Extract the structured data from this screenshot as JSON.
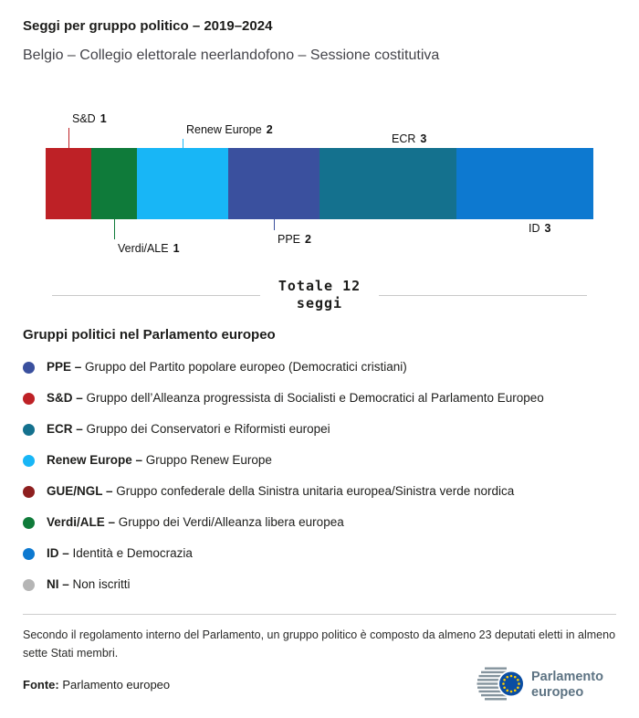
{
  "header": {
    "title": "Seggi per gruppo politico – 2019–2024",
    "subtitle": "Belgio – Collegio elettorale neerlandofono – Sessione costitutiva"
  },
  "chart_data": {
    "type": "bar",
    "orientation": "horizontal-stacked",
    "title": "Seggi per gruppo politico – 2019–2024",
    "subtitle": "Belgio – Collegio elettorale neerlandofono – Sessione costitutiva",
    "categories": [
      "S&D",
      "Verdi/ALE",
      "Renew Europe",
      "PPE",
      "ECR",
      "ID"
    ],
    "values": [
      1,
      1,
      2,
      2,
      3,
      3
    ],
    "total_seats": 12,
    "total_label": "Totale 12",
    "total_unit": "seggi",
    "segments": [
      {
        "group": "S&D",
        "seats": 1,
        "color": "#be2126",
        "label_side": "top",
        "line_len": 22
      },
      {
        "group": "Verdi/ALE",
        "seats": 1,
        "color": "#0f7b3a",
        "label_side": "bottom",
        "line_len": 22
      },
      {
        "group": "Renew Europe",
        "seats": 2,
        "color": "#18b6f6",
        "label_side": "top",
        "line_len": 10
      },
      {
        "group": "PPE",
        "seats": 2,
        "color": "#3a509e",
        "label_side": "bottom",
        "line_len": 12
      },
      {
        "group": "ECR",
        "seats": 3,
        "color": "#14718e",
        "label_side": "top",
        "line_len": 0
      },
      {
        "group": "ID",
        "seats": 3,
        "color": "#0d79d0",
        "label_side": "bottom",
        "line_len": 0
      }
    ]
  },
  "legend": {
    "title": "Gruppi politici nel Parlamento europeo",
    "items": [
      {
        "abbr_label": "PPE –",
        "desc": "Gruppo del Partito popolare europeo (Democratici cristiani)",
        "color": "#3a509e"
      },
      {
        "abbr_label": "S&D –",
        "desc": "Gruppo dell’Alleanza progressista di Socialisti e Democratici al Parlamento Europeo",
        "color": "#be2126"
      },
      {
        "abbr_label": "ECR –",
        "desc": "Gruppo dei Conservatori e Riformisti europei",
        "color": "#14718e"
      },
      {
        "abbr_label": "Renew Europe –",
        "desc": "Gruppo Renew Europe",
        "color": "#18b6f6"
      },
      {
        "abbr_label": "GUE/NGL –",
        "desc": "Gruppo confederale della Sinistra unitaria europea/Sinistra verde nordica",
        "color": "#8e1f1f"
      },
      {
        "abbr_label": "Verdi/ALE –",
        "desc": "Gruppo dei Verdi/Alleanza libera europea",
        "color": "#0f7b3a"
      },
      {
        "abbr_label": "ID –",
        "desc": "Identità e Democrazia",
        "color": "#0d79d0"
      },
      {
        "abbr_label": "NI –",
        "desc": "Non iscritti",
        "color": "#b5b5b5"
      }
    ]
  },
  "footer": {
    "note": "Secondo il regolamento interno del Parlamento, un gruppo politico è composto da almeno 23 deputati eletti in almeno sette Stati membri.",
    "source_label": "Fonte:",
    "source_text": "Parlamento europeo",
    "logo_line1": "Parlamento",
    "logo_line2": "europeo"
  }
}
